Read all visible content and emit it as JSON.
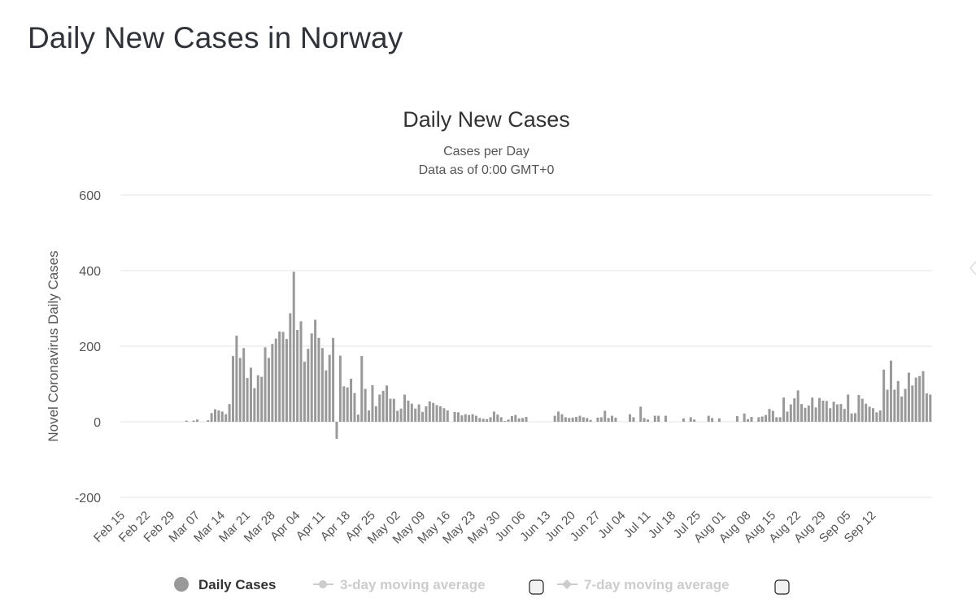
{
  "page": {
    "title": "Daily New Cases in Norway"
  },
  "colors": {
    "bar": "#999999",
    "legend_inactive": "#cccccc",
    "grid": "#e6e6e6"
  },
  "chart_data": {
    "type": "bar",
    "title": "Daily New Cases",
    "subtitle_lines": [
      "Cases per Day",
      "Data as of 0:00 GMT+0"
    ],
    "xlabel": "",
    "ylabel": "Novel Coronavirus Daily Cases",
    "ylim": [
      -200,
      600
    ],
    "yticks": [
      -200,
      0,
      200,
      400,
      600
    ],
    "grid": true,
    "x_tick_labels": [
      "Feb 15",
      "Feb 22",
      "Feb 29",
      "Mar 07",
      "Mar 14",
      "Mar 21",
      "Mar 28",
      "Apr 04",
      "Apr 11",
      "Apr 18",
      "Apr 25",
      "May 02",
      "May 09",
      "May 16",
      "May 23",
      "May 30",
      "Jun 06",
      "Jun 13",
      "Jun 20",
      "Jun 27",
      "Jul 04",
      "Jul 11",
      "Jul 18",
      "Jul 25",
      "Aug 01",
      "Aug 08",
      "Aug 15",
      "Aug 22",
      "Aug 29",
      "Sep 05",
      "Sep 12"
    ],
    "x_start": "Feb 15",
    "x_end": "Sep 14",
    "series": [
      {
        "name": "Daily Cases",
        "values": [
          0,
          0,
          0,
          0,
          0,
          0,
          0,
          0,
          0,
          0,
          0,
          0,
          0,
          0,
          0,
          0,
          0,
          0,
          3,
          0,
          3,
          6,
          0,
          0,
          4,
          23,
          33,
          30,
          27,
          20,
          47,
          174,
          228,
          169,
          195,
          116,
          143,
          89,
          123,
          119,
          197,
          169,
          206,
          220,
          239,
          238,
          219,
          287,
          397,
          243,
          266,
          159,
          193,
          234,
          270,
          222,
          195,
          136,
          177,
          222,
          -45,
          175,
          94,
          91,
          114,
          76,
          19,
          174,
          87,
          30,
          97,
          41,
          72,
          82,
          96,
          61,
          61,
          29,
          35,
          72,
          56,
          48,
          35,
          46,
          26,
          41,
          54,
          50,
          44,
          41,
          36,
          30,
          0,
          26,
          25,
          17,
          20,
          18,
          20,
          16,
          10,
          8,
          7,
          12,
          27,
          19,
          12,
          2,
          6,
          15,
          18,
          9,
          10,
          13,
          0,
          0,
          0,
          0,
          0,
          0,
          0,
          16,
          27,
          20,
          12,
          10,
          11,
          13,
          16,
          12,
          10,
          5,
          0,
          11,
          12,
          29,
          10,
          16,
          11,
          0,
          0,
          0,
          20,
          12,
          0,
          40,
          10,
          6,
          0,
          16,
          16,
          0,
          16,
          0,
          0,
          0,
          0,
          9,
          0,
          12,
          6,
          0,
          0,
          0,
          16,
          10,
          0,
          9,
          0,
          0,
          0,
          0,
          15,
          0,
          22,
          7,
          13,
          0,
          12,
          14,
          18,
          34,
          29,
          12,
          12,
          64,
          27,
          46,
          62,
          83,
          47,
          37,
          43,
          64,
          38,
          63,
          56,
          55,
          36,
          53,
          46,
          47,
          34,
          72,
          22,
          23,
          71,
          61,
          48,
          40,
          36,
          25,
          30,
          138,
          85,
          162,
          85,
          108,
          67,
          87,
          130,
          96,
          117,
          121,
          134,
          75,
          72
        ]
      }
    ],
    "legend": [
      {
        "label": "Daily Cases",
        "state": "active"
      },
      {
        "label": "3-day moving average",
        "state": "hidden"
      },
      {
        "label": "7-day moving average",
        "state": "hidden"
      }
    ]
  }
}
